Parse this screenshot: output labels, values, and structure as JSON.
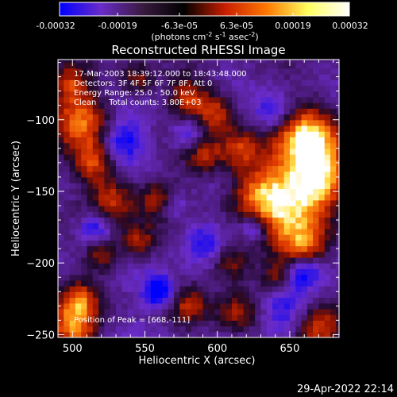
{
  "colorbar": {
    "ticks": [
      "-0.00032",
      "-0.00019",
      "-6.3e-05",
      "6.3e-05",
      "0.00019",
      "0.00032"
    ],
    "units": "(photons cm",
    "units_exp1": "-2",
    "units_mid": " s",
    "units_exp2": "-1",
    "units_mid2": " asec",
    "units_exp3": "-2",
    "units_end": ")",
    "colors": [
      "#0000ff",
      "#6a2cc8",
      "#3a1a40",
      "#000000",
      "#c81e00",
      "#ff7800",
      "#ffff60",
      "#ffffff"
    ]
  },
  "annotations": {
    "line1": "17-Mar-2003 18:39:12.000 to 18:43:48.000",
    "line2": "Detectors: 3F 4F 5F 6F 7F 8F, Att 0",
    "line3": "Energy Range: 25.0 - 50.0 keV",
    "line4": "Clean     Total counts: 3.80E+03",
    "peak": "Position of Peak = [668,-111]"
  },
  "footer": {
    "date": "29-Apr-2022 22:14"
  },
  "chart_data": {
    "type": "heatmap",
    "title": "Reconstructed RHESSI Image",
    "xlabel": "Heliocentric X (arcsec)",
    "ylabel": "Heliocentric Y (arcsec)",
    "xlim": [
      490,
      684
    ],
    "ylim": [
      -252,
      -58
    ],
    "x_ticks": [
      500,
      550,
      600,
      650
    ],
    "y_ticks": [
      -100,
      -150,
      -200,
      -250
    ],
    "peak": {
      "x": 668,
      "y": -111
    },
    "hot_regions": [
      {
        "x": 663,
        "y": -112,
        "r": 16,
        "v": 1.0
      },
      {
        "x": 650,
        "y": -160,
        "r": 20,
        "v": 0.75
      },
      {
        "x": 672,
        "y": -140,
        "r": 14,
        "v": 0.8
      },
      {
        "x": 660,
        "y": -190,
        "r": 12,
        "v": 0.6
      },
      {
        "x": 628,
        "y": -150,
        "r": 14,
        "v": 0.55
      },
      {
        "x": 615,
        "y": -120,
        "r": 10,
        "v": 0.55
      },
      {
        "x": 600,
        "y": -95,
        "r": 10,
        "v": 0.6
      },
      {
        "x": 580,
        "y": -85,
        "r": 10,
        "v": 0.55
      },
      {
        "x": 590,
        "y": -125,
        "r": 9,
        "v": 0.5
      },
      {
        "x": 560,
        "y": -155,
        "r": 10,
        "v": 0.55
      },
      {
        "x": 545,
        "y": -185,
        "r": 9,
        "v": 0.55
      },
      {
        "x": 528,
        "y": -155,
        "r": 11,
        "v": 0.6
      },
      {
        "x": 505,
        "y": -100,
        "r": 14,
        "v": 0.7
      },
      {
        "x": 515,
        "y": -130,
        "r": 10,
        "v": 0.55
      },
      {
        "x": 498,
        "y": -75,
        "r": 9,
        "v": 0.5
      },
      {
        "x": 545,
        "y": -72,
        "r": 8,
        "v": 0.45
      },
      {
        "x": 610,
        "y": -200,
        "r": 10,
        "v": 0.5
      },
      {
        "x": 615,
        "y": -235,
        "r": 11,
        "v": 0.5
      },
      {
        "x": 580,
        "y": -230,
        "r": 9,
        "v": 0.45
      },
      {
        "x": 500,
        "y": -245,
        "r": 12,
        "v": 0.75
      },
      {
        "x": 505,
        "y": -225,
        "r": 9,
        "v": 0.55
      },
      {
        "x": 670,
        "y": -245,
        "r": 12,
        "v": 0.75
      },
      {
        "x": 520,
        "y": -195,
        "r": 8,
        "v": 0.45
      },
      {
        "x": 640,
        "y": -210,
        "r": 8,
        "v": 0.45
      }
    ],
    "cold_regions": [
      {
        "x": 648,
        "y": -230,
        "r": 14,
        "v": -0.55
      },
      {
        "x": 660,
        "y": -205,
        "r": 8,
        "v": -0.6
      },
      {
        "x": 560,
        "y": -220,
        "r": 8,
        "v": -0.7
      },
      {
        "x": 535,
        "y": -115,
        "r": 10,
        "v": -0.5
      },
      {
        "x": 580,
        "y": -110,
        "r": 8,
        "v": -0.45
      },
      {
        "x": 590,
        "y": -185,
        "r": 10,
        "v": -0.45
      },
      {
        "x": 640,
        "y": -95,
        "r": 10,
        "v": -0.45
      },
      {
        "x": 515,
        "y": -175,
        "r": 8,
        "v": -0.5
      },
      {
        "x": 570,
        "y": -160,
        "r": 7,
        "v": -0.45
      },
      {
        "x": 625,
        "y": -175,
        "r": 7,
        "v": -0.5
      }
    ]
  }
}
